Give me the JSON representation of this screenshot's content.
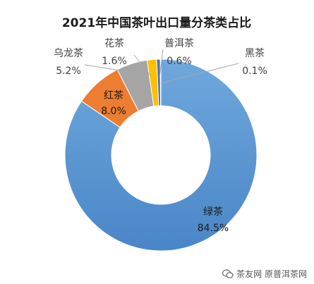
{
  "chart_data": {
    "type": "pie",
    "variant": "doughnut",
    "title": "2021年中国茶叶出口量分茶类占比",
    "slices": [
      {
        "name": "绿茶",
        "value": 84.5,
        "label": "84.5%",
        "color": "#5b9bd5"
      },
      {
        "name": "红茶",
        "value": 8.0,
        "label": "8.0%",
        "color": "#ed7d31"
      },
      {
        "name": "乌龙茶",
        "value": 5.2,
        "label": "5.2%",
        "color": "#a5a5a5"
      },
      {
        "name": "花茶",
        "value": 1.6,
        "label": "1.6%",
        "color": "#ffc000"
      },
      {
        "name": "普洱茶",
        "value": 0.6,
        "label": "0.6%",
        "color": "#4472c4"
      },
      {
        "name": "黑茶",
        "value": 0.1,
        "label": "0.1%",
        "color": "#70ad47"
      }
    ]
  },
  "watermark": {
    "text": "茶友网 原普洱茶网",
    "icon": "wechat-icon"
  }
}
